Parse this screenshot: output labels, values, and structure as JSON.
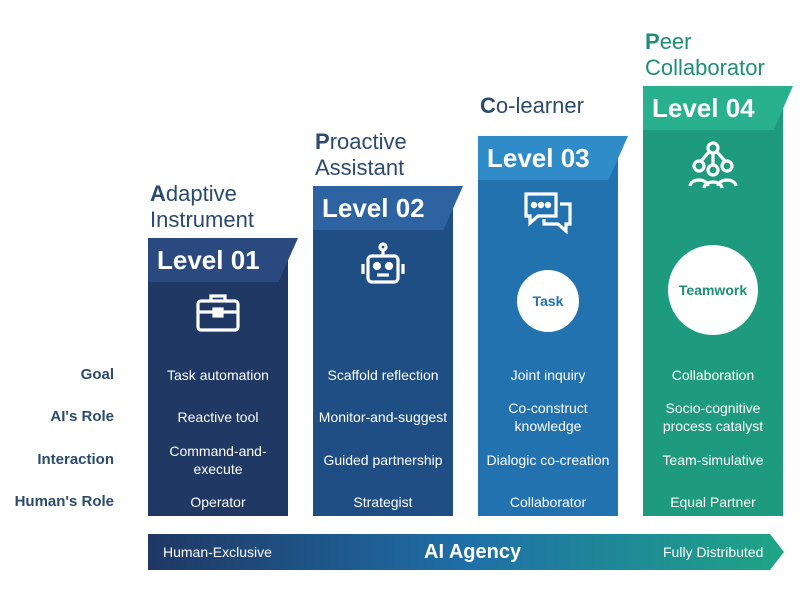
{
  "levels": [
    {
      "title_cap": "A",
      "title_rest": "daptive",
      "title_line2": "Instrument",
      "level": "Level 01",
      "goal": "Task automation",
      "role": "Reactive tool",
      "interaction": "Command-and-execute",
      "human": "Operator",
      "icon": "briefcase-icon",
      "color": "#1f3864",
      "band": "#2a4a7f"
    },
    {
      "title_cap": "P",
      "title_rest": "roactive",
      "title_line2": "Assistant",
      "level": "Level 02",
      "goal": "Scaffold reflection",
      "role": "Monitor-and-suggest",
      "interaction": "Guided partnership",
      "human": "Strategist",
      "icon": "robot-icon",
      "color": "#1f4e85",
      "band": "#2d63a0"
    },
    {
      "title_cap": "C",
      "title_rest": "o-learner",
      "title_line2": "",
      "level": "Level 03",
      "goal": "Joint inquiry",
      "role": "Co-construct knowledge",
      "interaction": "Dialogic co-creation",
      "human": "Collaborator",
      "icon": "chat-bubbles-icon",
      "circle": "Task",
      "color": "#2272b0",
      "band": "#2f8cc8"
    },
    {
      "title_cap": "P",
      "title_rest": "eer",
      "title_line2": "Collaborator",
      "level": "Level 04",
      "goal": "Collaboration",
      "role": "Socio-cognitive process catalyst",
      "interaction": "Team-simulative",
      "human": "Equal Partner",
      "icon": "team-icon",
      "circle": "Teamwork",
      "color": "#1e9a7e",
      "band": "#29b08f"
    }
  ],
  "row_labels": {
    "goal": "Goal",
    "role": "AI's Role",
    "interaction": "Interaction",
    "human": "Human's Role"
  },
  "agency": {
    "left": "Human-Exclusive",
    "center": "AI Agency",
    "right": "Fully Distributed"
  }
}
